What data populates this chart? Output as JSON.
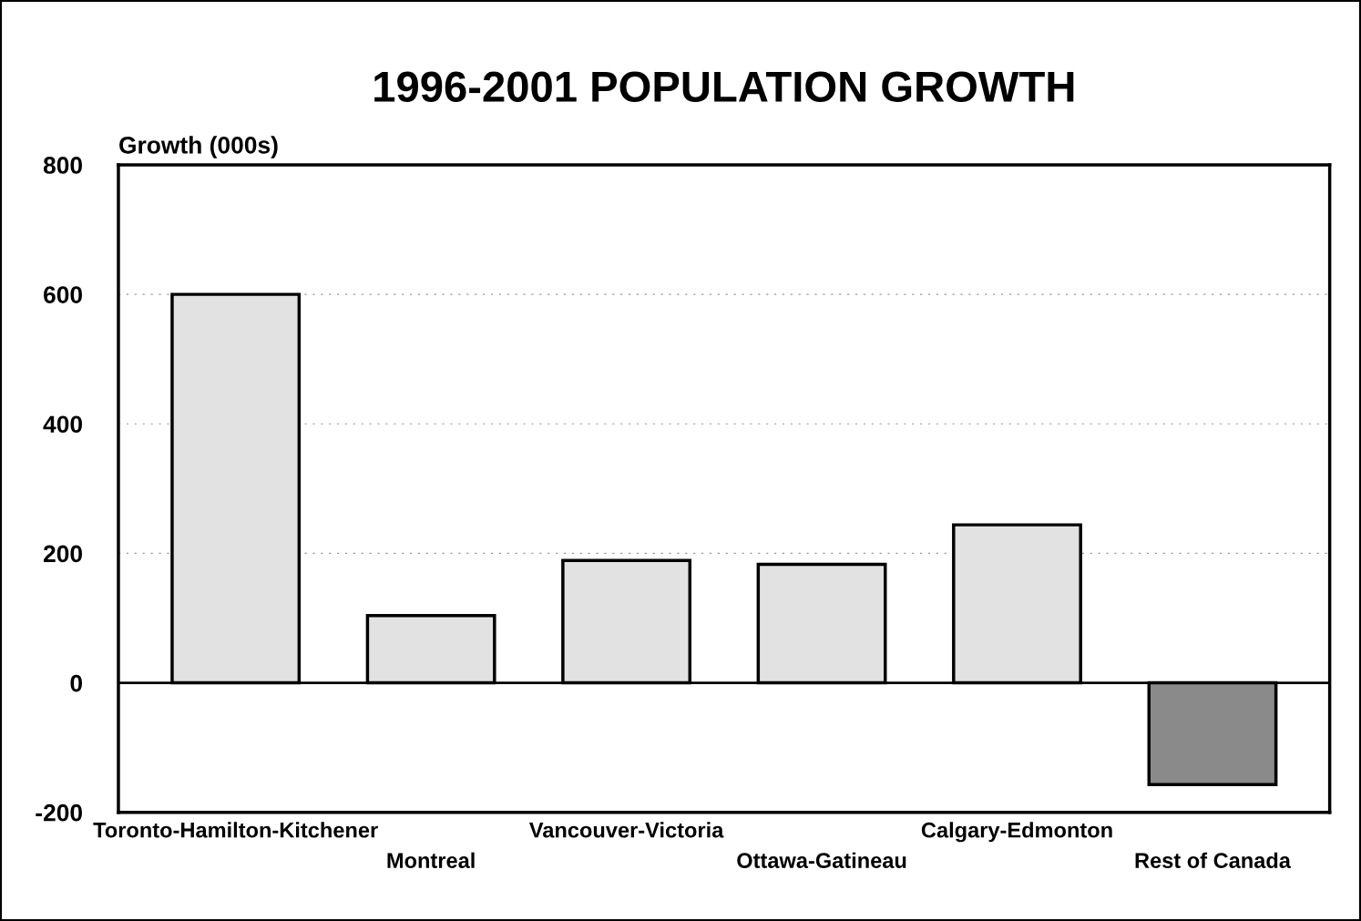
{
  "chart_data": {
    "type": "bar",
    "title": "1996-2001 POPULATION GROWTH",
    "ylabel": "Growth (000s)",
    "categories": [
      "Toronto-Hamilton-Kitchener",
      "Montreal",
      "Vancouver-Victoria",
      "Ottawa-Gatineau",
      "Calgary-Edmonton",
      "Rest of Canada"
    ],
    "values": [
      600,
      104,
      189,
      183,
      244,
      -157
    ],
    "colors": [
      "#e2e2e2",
      "#e2e2e2",
      "#e2e2e2",
      "#e2e2e2",
      "#e2e2e2",
      "#8a8a8a"
    ],
    "ylim": [
      -200,
      800
    ],
    "yticks": [
      -200,
      0,
      200,
      400,
      600,
      800
    ],
    "grid": "y"
  }
}
